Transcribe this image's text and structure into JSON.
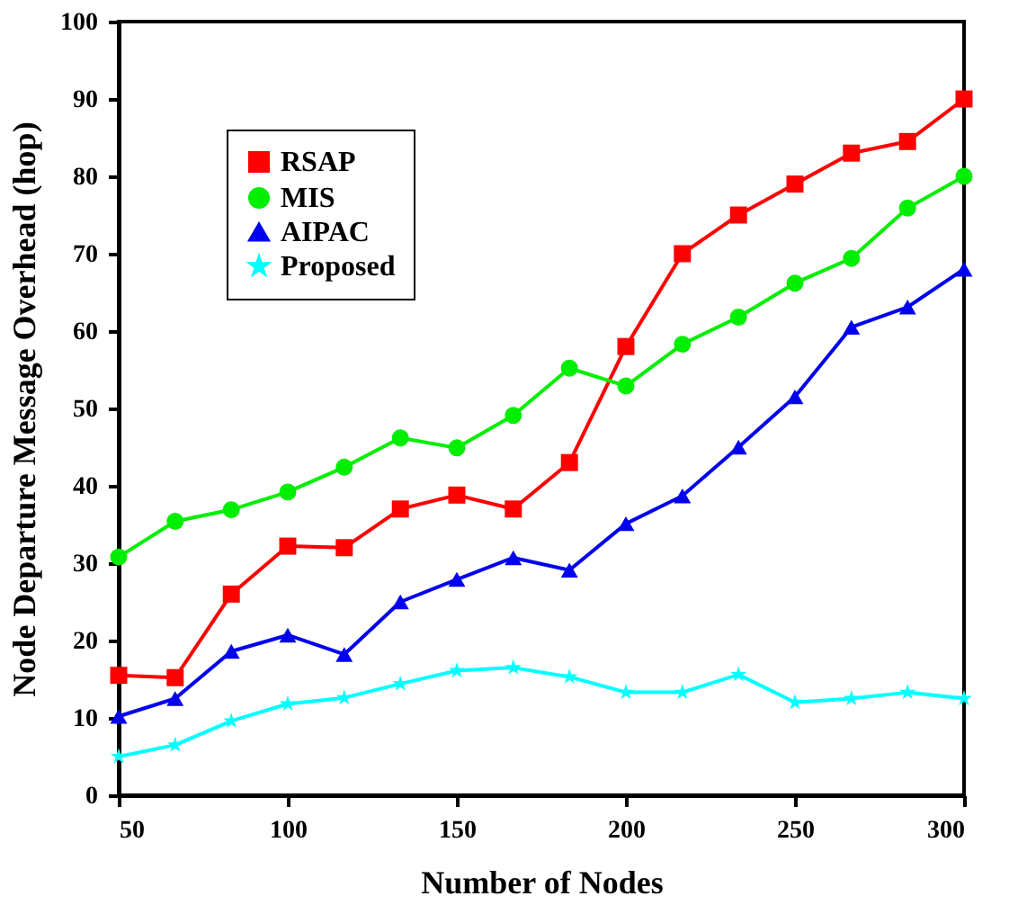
{
  "chart_data": {
    "type": "line",
    "xlabel": "Number of Nodes",
    "ylabel": "Node Departure Message Overhead (hop)",
    "x": [
      50,
      66.7,
      83.3,
      100,
      116.7,
      133.3,
      150,
      166.7,
      183.3,
      200,
      216.7,
      233.3,
      250,
      266.7,
      283.3,
      300
    ],
    "series": [
      {
        "name": "RSAP",
        "color": "#ff0000",
        "marker": "square",
        "values": [
          15.5,
          15.2,
          26,
          32.2,
          32,
          37,
          38.8,
          37,
          43,
          58,
          70,
          75,
          79,
          83,
          84.5,
          90
        ]
      },
      {
        "name": "MIS",
        "color": "#00ee00",
        "marker": "circle",
        "values": [
          30.8,
          35.4,
          36.9,
          39.2,
          42.4,
          46.2,
          44.9,
          49.1,
          55.2,
          52.9,
          58.3,
          61.8,
          66.2,
          69.4,
          75.9,
          80
        ]
      },
      {
        "name": "AIPAC",
        "color": "#0000ee",
        "marker": "triangle",
        "values": [
          10.2,
          12.5,
          18.6,
          20.7,
          18.2,
          25,
          27.9,
          30.7,
          29.1,
          35.1,
          38.7,
          45,
          51.5,
          60.5,
          63.1,
          68
        ]
      },
      {
        "name": "Proposed",
        "color": "#00ffff",
        "marker": "star",
        "values": [
          5,
          6.5,
          9.6,
          11.8,
          12.6,
          14.4,
          16.1,
          16.5,
          15.3,
          13.3,
          13.3,
          15.6,
          12,
          12.5,
          13.3,
          12.5
        ]
      }
    ],
    "xlim": [
      50,
      300
    ],
    "xticks": [
      50,
      100,
      150,
      200,
      250,
      300
    ],
    "ylim": [
      0,
      100
    ],
    "yticks": [
      0,
      10,
      20,
      30,
      40,
      50,
      60,
      70,
      80,
      90,
      100
    ],
    "grid": false,
    "legend": "top left",
    "line_style": "solid"
  }
}
